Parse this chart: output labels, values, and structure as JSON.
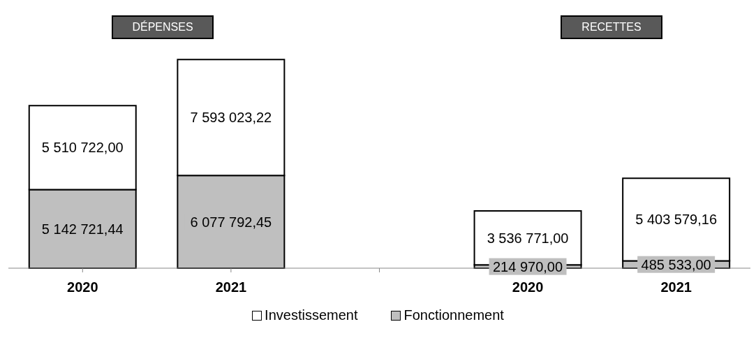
{
  "chart_data": {
    "type": "bar",
    "stacked": true,
    "categories": [
      "2020",
      "2021",
      null,
      "2020",
      "2021"
    ],
    "series": [
      {
        "name": "Fonctionnement",
        "color": "#bfbfbf",
        "values": [
          5142721.44,
          6077792.45,
          null,
          214970.0,
          485533.0
        ],
        "value_labels": [
          "5 142 721,44",
          "6 077 792,45",
          null,
          "214 970,00",
          "485 533,00"
        ]
      },
      {
        "name": "Investissement",
        "color": "#ffffff",
        "values": [
          5510722.0,
          7593023.22,
          null,
          3536771.0,
          5403579.16
        ],
        "value_labels": [
          "5 510 722,00",
          "7 593 023,22",
          null,
          "3 536 771,00",
          "5 403 579,16"
        ]
      }
    ],
    "annotations": [
      "DÉPENSES",
      "RECETTES"
    ],
    "legend": "bottom"
  }
}
